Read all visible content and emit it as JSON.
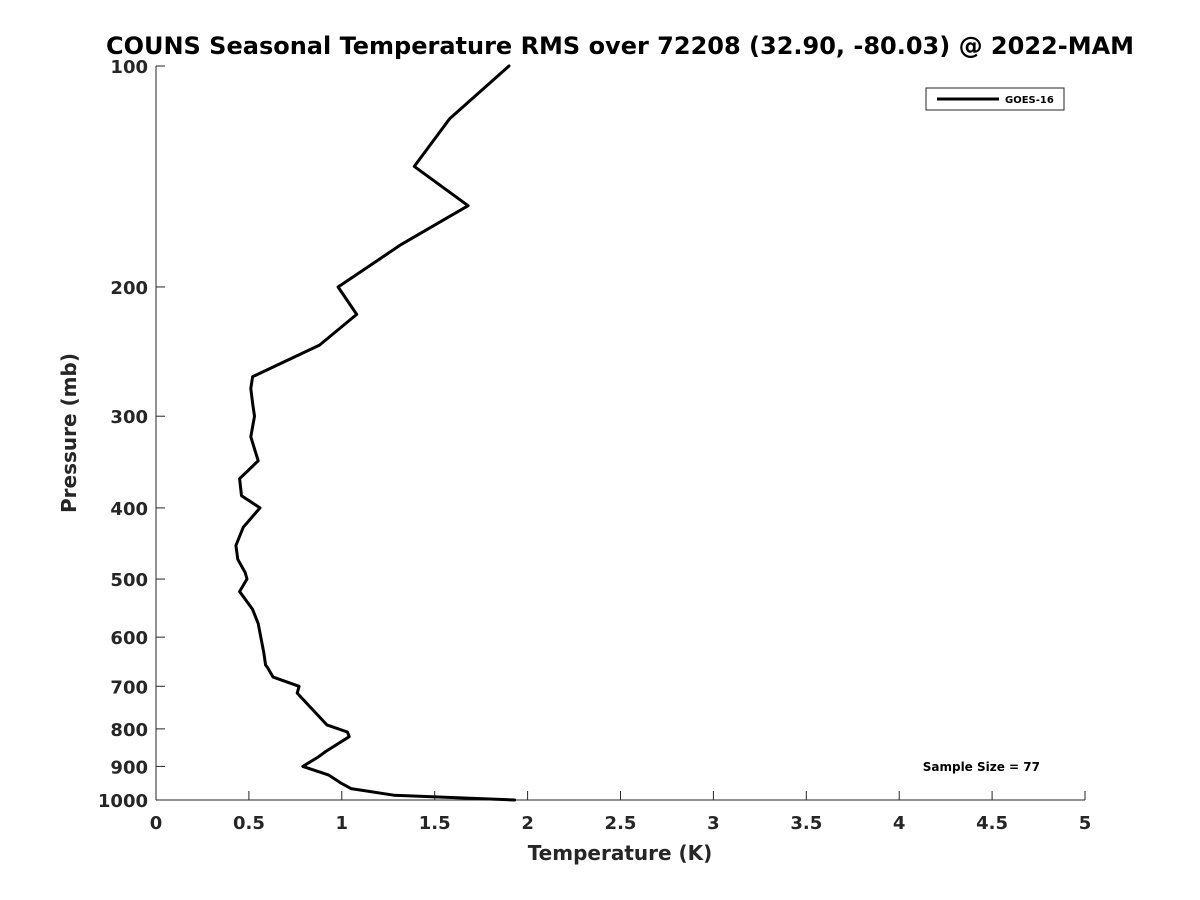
{
  "chart_data": {
    "type": "line",
    "title": "COUNS Seasonal Temperature RMS over 72208 (32.90, -80.03) @ 2022-MAM",
    "xlabel": "Temperature (K)",
    "ylabel": "Pressure (mb)",
    "xlim": [
      0,
      5
    ],
    "ylim": [
      100,
      1000
    ],
    "y_scale": "log",
    "y_reversed": true,
    "grid": false,
    "legend_position": "top-right",
    "x_ticks": [
      "0",
      "0.5",
      "1",
      "1.5",
      "2",
      "2.5",
      "3",
      "3.5",
      "4",
      "4.5",
      "5"
    ],
    "y_ticks": [
      "100",
      "200",
      "300",
      "400",
      "500",
      "600",
      "700",
      "800",
      "900",
      "1000"
    ],
    "annotation": "Sample Size = 77",
    "series": [
      {
        "name": "GOES-16",
        "color": "#000000",
        "points": [
          [
            1.9,
            100
          ],
          [
            1.58,
            118
          ],
          [
            1.39,
            137
          ],
          [
            1.68,
            155
          ],
          [
            1.32,
            175
          ],
          [
            0.98,
            200
          ],
          [
            1.08,
            218
          ],
          [
            0.88,
            240
          ],
          [
            0.52,
            265
          ],
          [
            0.51,
            275
          ],
          [
            0.52,
            288
          ],
          [
            0.53,
            300
          ],
          [
            0.51,
            320
          ],
          [
            0.55,
            345
          ],
          [
            0.45,
            365
          ],
          [
            0.46,
            385
          ],
          [
            0.56,
            400
          ],
          [
            0.47,
            425
          ],
          [
            0.43,
            450
          ],
          [
            0.44,
            470
          ],
          [
            0.48,
            490
          ],
          [
            0.49,
            500
          ],
          [
            0.45,
            520
          ],
          [
            0.52,
            550
          ],
          [
            0.55,
            575
          ],
          [
            0.58,
            630
          ],
          [
            0.59,
            655
          ],
          [
            0.6,
            660
          ],
          [
            0.63,
            680
          ],
          [
            0.77,
            700
          ],
          [
            0.76,
            715
          ],
          [
            0.92,
            790
          ],
          [
            1.03,
            808
          ],
          [
            1.04,
            820
          ],
          [
            0.91,
            860
          ],
          [
            0.87,
            875
          ],
          [
            0.79,
            900
          ],
          [
            0.93,
            925
          ],
          [
            1.0,
            950
          ],
          [
            1.05,
            965
          ],
          [
            1.28,
            985
          ],
          [
            1.93,
            1000
          ]
        ]
      }
    ]
  }
}
